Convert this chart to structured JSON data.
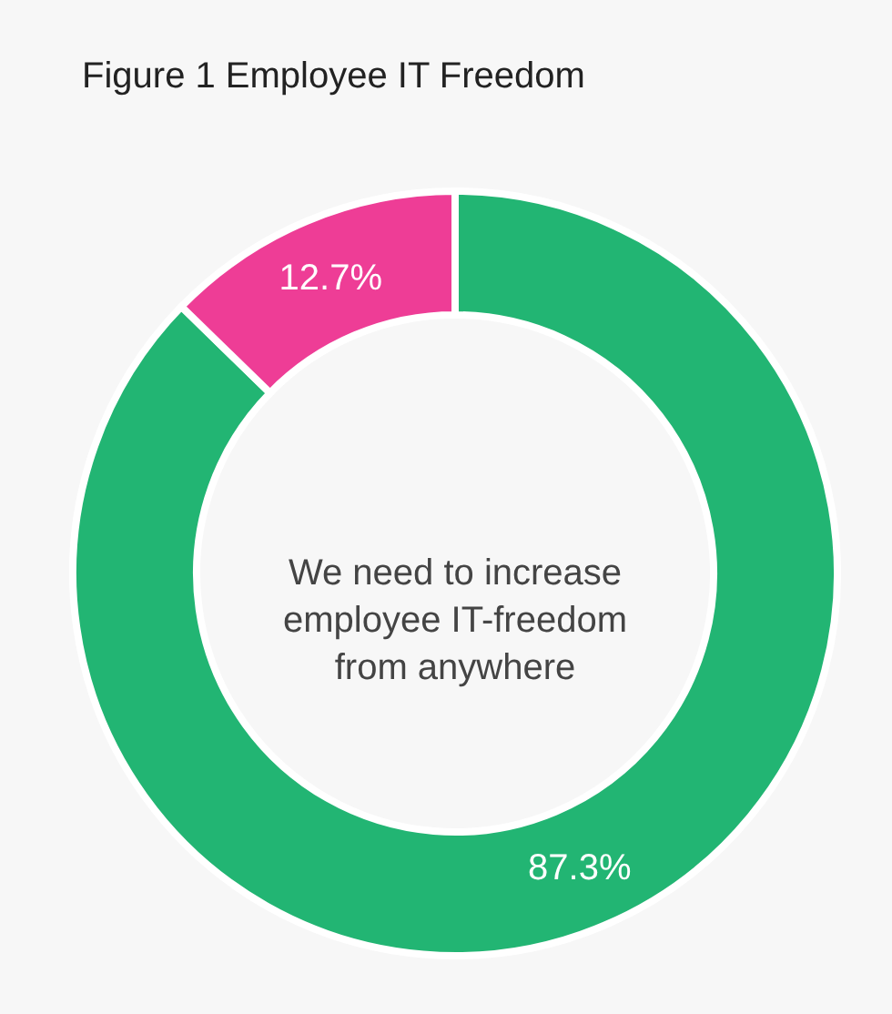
{
  "chart_data": {
    "type": "donut",
    "title": "Figure 1 Employee IT Freedom",
    "categories": [
      null,
      null
    ],
    "values": [
      87.3,
      12.7
    ],
    "colors": [
      "#22b573",
      "#ee3d96"
    ],
    "value_labels": [
      "87.3%",
      "12.7%"
    ],
    "annotations": [
      "We need to increase\nemployee IT-freedom\nfrom anywhere"
    ]
  }
}
